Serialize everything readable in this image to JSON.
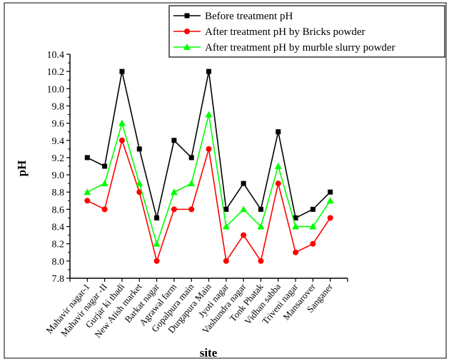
{
  "chart_data": {
    "type": "line",
    "xlabel": "site",
    "ylabel": "pH",
    "ylim": [
      7.8,
      10.4
    ],
    "yticks": [
      7.8,
      8.0,
      8.2,
      8.4,
      8.6,
      8.8,
      9.0,
      9.2,
      9.4,
      9.6,
      9.8,
      10.0,
      10.2,
      10.4
    ],
    "grid": false,
    "legend_position": "top-right",
    "categories": [
      "Mahavir nagar-1",
      "Mahavir nagar -II",
      "Gurjar ki thadi",
      "New Atish market",
      "Barkat nagar",
      "Agrawal farm",
      "Gopalpura main",
      "Durgapura Main",
      "Jyoti nagar",
      "Vashundra nagar",
      "Tonk Phatak",
      "Vidhan sabba",
      "Triveni nagar",
      "Mansarover",
      "Sanganer"
    ],
    "series": [
      {
        "name": "Before treatment pH",
        "color": "#000000",
        "marker": "square",
        "values": [
          9.2,
          9.1,
          10.2,
          9.3,
          8.5,
          9.4,
          9.2,
          10.2,
          8.6,
          8.9,
          8.6,
          9.5,
          8.5,
          8.6,
          8.8
        ]
      },
      {
        "name": "After treatment pH by Bricks powder",
        "color": "#ff0000",
        "marker": "circle",
        "values": [
          8.7,
          8.6,
          9.4,
          8.8,
          8.0,
          8.6,
          8.6,
          9.3,
          8.0,
          8.3,
          8.0,
          8.9,
          8.1,
          8.2,
          8.5
        ]
      },
      {
        "name": "After treatment pH by murble slurry powder",
        "color": "#00ff00",
        "marker": "triangle",
        "values": [
          8.8,
          8.9,
          9.6,
          8.9,
          8.2,
          8.8,
          8.9,
          9.7,
          8.4,
          8.6,
          8.4,
          9.1,
          8.4,
          8.4,
          8.7
        ]
      }
    ]
  }
}
